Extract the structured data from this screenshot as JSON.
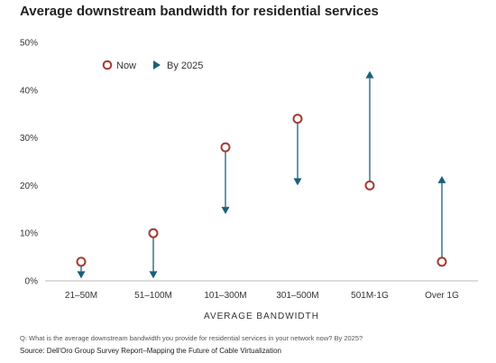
{
  "chart_data": {
    "type": "scatter",
    "title": "Average downstream bandwidth for residential services",
    "xlabel": "AVERAGE BANDWIDTH",
    "ylabel": "",
    "categories": [
      "21–50M",
      "51–100M",
      "101–300M",
      "301–500M",
      "501M-1G",
      "Over 1G"
    ],
    "yticks": [
      "0%",
      "10%",
      "20%",
      "30%",
      "40%",
      "50%"
    ],
    "ylim": [
      0,
      50
    ],
    "grid": false,
    "legend_position": "top-left",
    "series": [
      {
        "name": "Now",
        "values": [
          4,
          10,
          28,
          34,
          20,
          4
        ]
      },
      {
        "name": "By 2025",
        "values": [
          0.5,
          0.5,
          14,
          20,
          44,
          22
        ]
      }
    ],
    "colors": {
      "now": "#a33a32",
      "by2025": "#1a5f7a",
      "axis": "#bbbbbb"
    }
  },
  "footnote": "Q:  What is the average downstream bandwidth you provide for residential services in your network now? By 2025?",
  "source": "Source: Dell'Oro Group Survey Report–Mapping the Future of Cable Virtualization"
}
